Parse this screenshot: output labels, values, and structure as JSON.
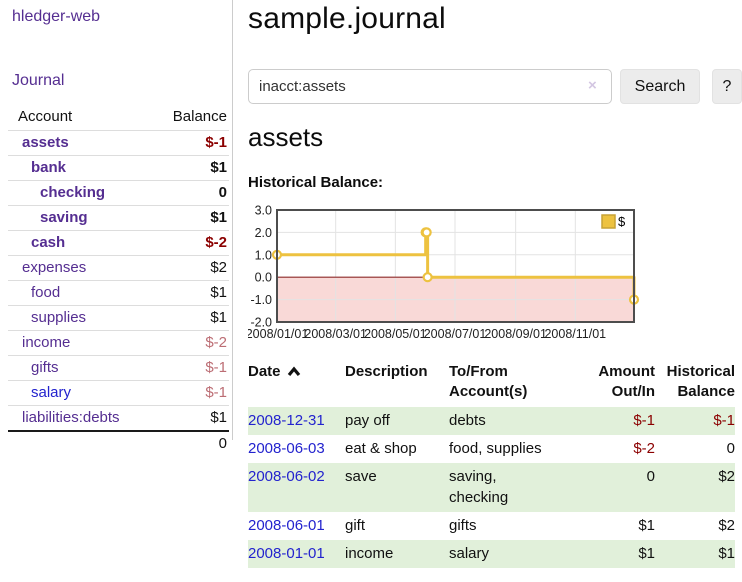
{
  "colors": {
    "purple": "#552E91",
    "blue": "#2323CE",
    "neg_strong": "#8B0000",
    "neg_soft": "#BC6D74",
    "row_green": "#E1F0DA",
    "gold": "#EDC240",
    "gold_border": "#C7A235",
    "zero_line": "#8E2A2A",
    "negative_fill": "#F9D9D7",
    "grid": "#E3E3E3",
    "plot_border": "#4D4D4D"
  },
  "sidebar": {
    "app_title": "hledger-web",
    "journal_link": "Journal",
    "account_header": "Account",
    "balance_header": "Balance",
    "accounts": [
      {
        "name": "assets",
        "depth": 0,
        "bold": true,
        "balance": "$-1",
        "neg": "strong"
      },
      {
        "name": "bank",
        "depth": 1,
        "bold": true,
        "balance": "$1"
      },
      {
        "name": "checking",
        "depth": 2,
        "bold": true,
        "balance": "0"
      },
      {
        "name": "saving",
        "depth": 2,
        "bold": true,
        "balance": "$1"
      },
      {
        "name": "cash",
        "depth": 1,
        "bold": true,
        "balance": "$-2",
        "neg": "strong"
      },
      {
        "name": "expenses",
        "depth": 0,
        "bold": false,
        "balance": "$2"
      },
      {
        "name": "food",
        "depth": 1,
        "bold": false,
        "balance": "$1"
      },
      {
        "name": "supplies",
        "depth": 1,
        "bold": false,
        "balance": "$1"
      },
      {
        "name": "income",
        "depth": 0,
        "bold": false,
        "balance": "$-2",
        "neg": "soft"
      },
      {
        "name": "gifts",
        "depth": 1,
        "bold": false,
        "balance": "$-1",
        "neg": "soft"
      },
      {
        "name": "salary",
        "depth": 1,
        "bold": false,
        "balance": "$-1",
        "neg": "soft",
        "link": "blue"
      },
      {
        "name": "liabilities:debts",
        "depth": 0,
        "bold": false,
        "balance": "$1"
      }
    ],
    "total": "0"
  },
  "main": {
    "title": "sample.journal",
    "search": {
      "value": "inacct:assets",
      "clear_icon": "×",
      "button_label": "Search",
      "help_label": "?"
    },
    "account_heading": "assets"
  },
  "chart_data": {
    "type": "line",
    "step": true,
    "title": "Historical Balance:",
    "legend": [
      {
        "label": "$",
        "color": "#EDC240"
      }
    ],
    "legend_position": "top-right",
    "grid": true,
    "x_range": [
      "2008-01-01",
      "2008-12-31"
    ],
    "ylim": [
      -2,
      3
    ],
    "y_ticks": [
      "3.0",
      "2.0",
      "1.0",
      "0.0",
      "-1.0",
      "-2.0"
    ],
    "x_ticks": [
      "2008/01/01",
      "2008/03/01",
      "2008/05/01",
      "2008/07/01",
      "2008/09/01",
      "2008/11/01"
    ],
    "series": [
      {
        "name": "$",
        "points": [
          [
            "2008-01-01",
            1
          ],
          [
            "2008-06-01",
            2
          ],
          [
            "2008-06-02",
            2
          ],
          [
            "2008-06-03",
            0
          ],
          [
            "2008-12-31",
            -1
          ]
        ]
      }
    ]
  },
  "register": {
    "headers": [
      {
        "label": "Date",
        "sort": "asc",
        "align": "left"
      },
      {
        "label": "Description",
        "align": "left"
      },
      {
        "label": "To/From Account(s)",
        "align": "left"
      },
      {
        "label": "Amount Out/In",
        "align": "right"
      },
      {
        "label": "Historical Balance",
        "align": "right"
      }
    ],
    "rows": [
      {
        "date": "2008-12-31",
        "description": "pay off",
        "accounts": "debts",
        "amount": "$-1",
        "balance": "$-1"
      },
      {
        "date": "2008-06-03",
        "description": "eat & shop",
        "accounts": "food, supplies",
        "amount": "$-2",
        "balance": "0"
      },
      {
        "date": "2008-06-02",
        "description": "save",
        "accounts": "saving, checking",
        "amount": "0",
        "balance": "$2"
      },
      {
        "date": "2008-06-01",
        "description": "gift",
        "accounts": "gifts",
        "amount": "$1",
        "balance": "$2"
      },
      {
        "date": "2008-01-01",
        "description": "income",
        "accounts": "salary",
        "amount": "$1",
        "balance": "$1"
      }
    ]
  }
}
